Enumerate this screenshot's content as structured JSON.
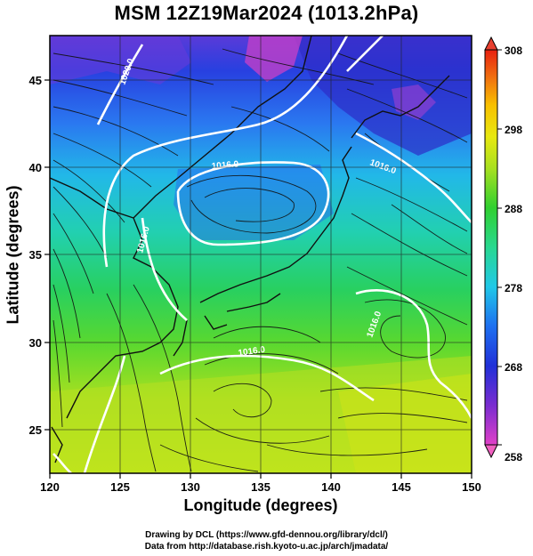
{
  "title": "MSM 12Z19Mar2024 (1013.2hPa)",
  "x_axis": {
    "label": "Longitude (degrees)",
    "range": [
      120,
      150
    ],
    "ticks": [
      "120",
      "125",
      "130",
      "135",
      "140",
      "145",
      "150"
    ]
  },
  "y_axis": {
    "label": "Latitude  (degrees)",
    "range": [
      22.5,
      47.5
    ],
    "ticks": [
      "25",
      "30",
      "35",
      "40",
      "45"
    ]
  },
  "colorbar": {
    "range": [
      258,
      308
    ],
    "ticks": [
      "258",
      "268",
      "278",
      "288",
      "298",
      "308"
    ],
    "colors": [
      "#e040c8",
      "#7a2cd0",
      "#2030d8",
      "#1e70f0",
      "#20c8e8",
      "#28d890",
      "#30d030",
      "#a8e020",
      "#e8e810",
      "#f8c000",
      "#f07010",
      "#e82010"
    ]
  },
  "contours": {
    "color": "#ffffff",
    "labels": [
      "1020.0",
      "1016.0",
      "1016.0",
      "1016.0",
      "1016.0",
      "1016.0"
    ]
  },
  "credits": {
    "line1": "Drawing by DCL (https://www.gfd-dennou.org/library/dcl/)",
    "line2": "Data from http://database.rish.kyoto-u.ac.jp/arch/jmadata/"
  }
}
